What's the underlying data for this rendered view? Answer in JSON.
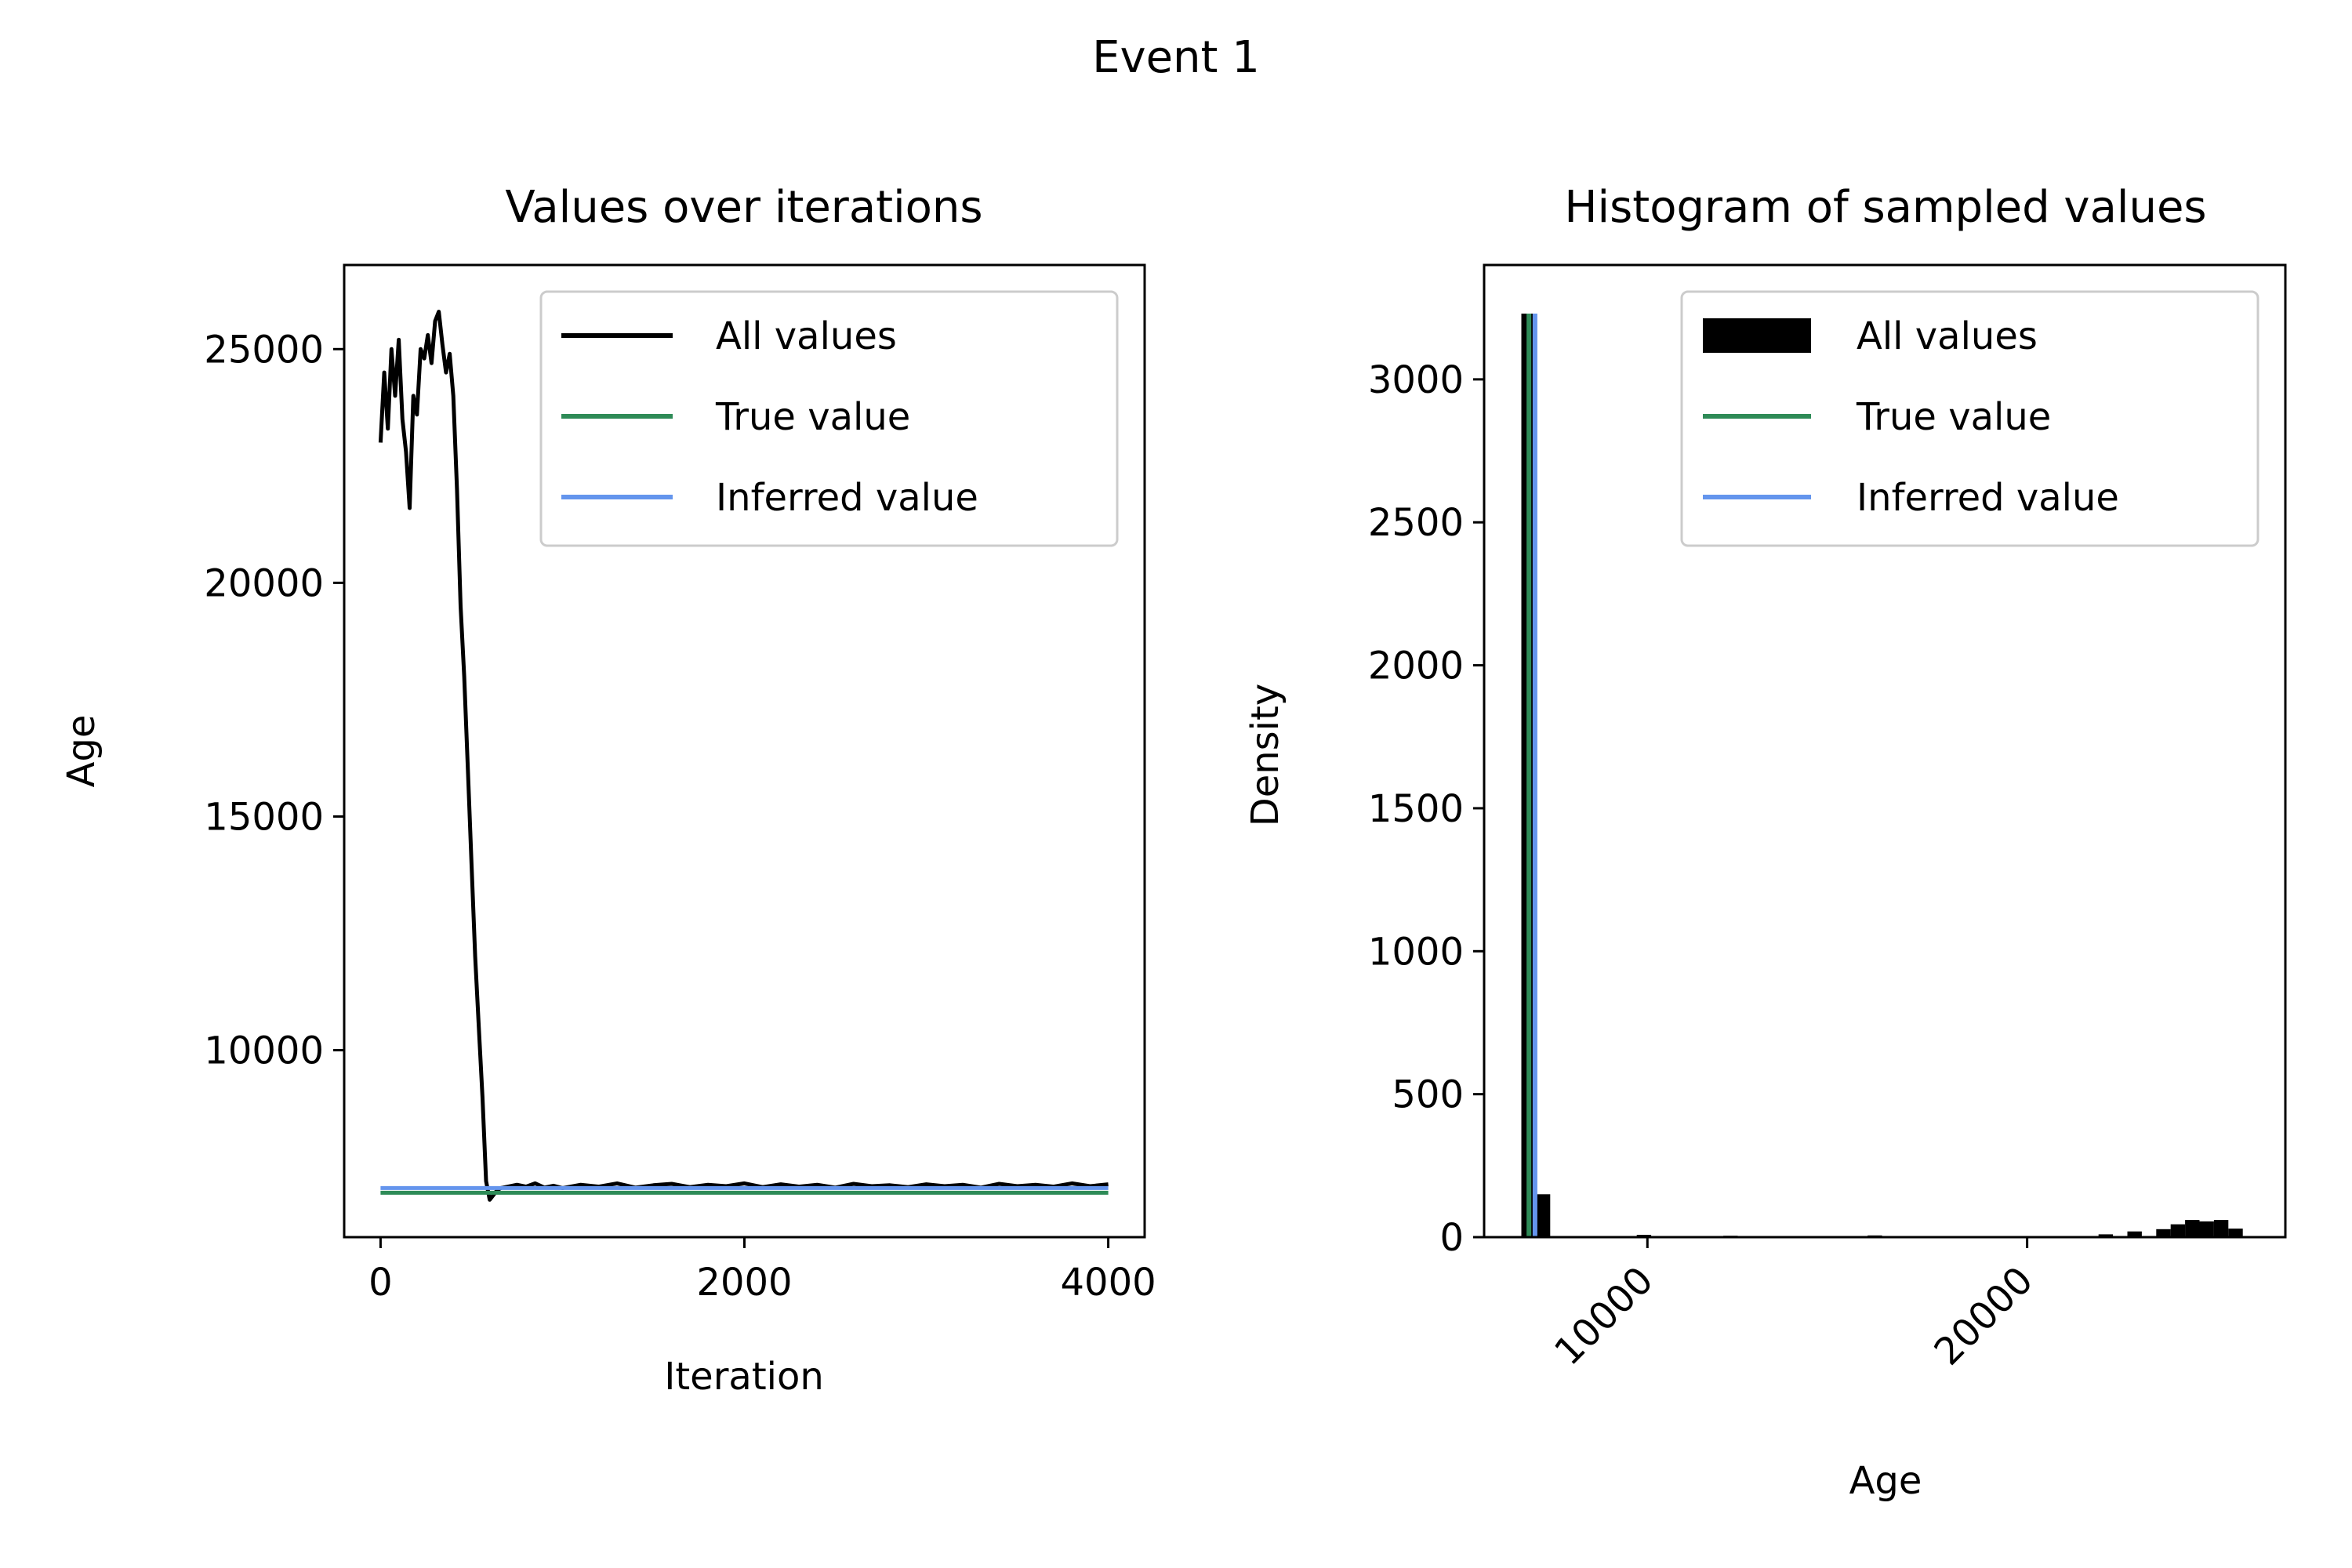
{
  "figure": {
    "suptitle": "Event 1"
  },
  "colors": {
    "all_values": "#000000",
    "true_value": "#2e8b57",
    "inferred_value": "#6495ed"
  },
  "chart_data": [
    {
      "type": "line",
      "title": "Values over iterations",
      "xlabel": "Iteration",
      "ylabel": "Age",
      "xlim": [
        -200,
        4200
      ],
      "ylim": [
        6000,
        26800
      ],
      "xticks": [
        0,
        2000,
        4000
      ],
      "yticks": [
        10000,
        15000,
        20000,
        25000
      ],
      "legend": {
        "position": "top-right",
        "entries": [
          "All values",
          "True value",
          "Inferred value"
        ]
      },
      "series": [
        {
          "name": "All values",
          "x": [
            0,
            20,
            40,
            60,
            80,
            100,
            120,
            140,
            160,
            180,
            200,
            220,
            240,
            260,
            280,
            300,
            320,
            340,
            360,
            380,
            400,
            420,
            440,
            460,
            480,
            500,
            520,
            540,
            560,
            580,
            600,
            620,
            640,
            660,
            700,
            750,
            800,
            850,
            900,
            950,
            1000,
            1100,
            1200,
            1300,
            1400,
            1500,
            1600,
            1700,
            1800,
            1900,
            2000,
            2100,
            2200,
            2300,
            2400,
            2500,
            2600,
            2700,
            2800,
            2900,
            3000,
            3100,
            3200,
            3300,
            3400,
            3500,
            3600,
            3700,
            3800,
            3900,
            4000
          ],
          "y": [
            23000,
            24500,
            23300,
            25000,
            24000,
            25200,
            23500,
            22800,
            21600,
            24000,
            23600,
            25000,
            24800,
            25300,
            24700,
            25600,
            25800,
            25100,
            24500,
            24900,
            24000,
            22000,
            19500,
            18000,
            16000,
            14000,
            12000,
            10500,
            9000,
            7200,
            6800,
            6900,
            7000,
            7050,
            7080,
            7120,
            7080,
            7150,
            7060,
            7100,
            7050,
            7120,
            7080,
            7150,
            7060,
            7110,
            7140,
            7070,
            7120,
            7090,
            7150,
            7070,
            7130,
            7080,
            7120,
            7060,
            7140,
            7090,
            7110,
            7070,
            7130,
            7090,
            7120,
            7060,
            7140,
            7090,
            7120,
            7080,
            7150,
            7090,
            7130
          ]
        },
        {
          "name": "True value",
          "x": [
            0,
            4000
          ],
          "y": [
            6950,
            6950
          ]
        },
        {
          "name": "Inferred value",
          "x": [
            0,
            4000
          ],
          "y": [
            7050,
            7050
          ]
        }
      ]
    },
    {
      "type": "bar",
      "title": "Histogram of sampled values",
      "xlabel": "Age",
      "ylabel": "Density",
      "xlim": [
        5700,
        26800
      ],
      "ylim": [
        0,
        3400
      ],
      "xticks": [
        10000,
        20000
      ],
      "yticks": [
        0,
        500,
        1000,
        1500,
        2000,
        2500,
        3000
      ],
      "bin_width": 380,
      "legend": {
        "position": "top-right",
        "entries": [
          "All values",
          "True value",
          "Inferred value"
        ]
      },
      "series": [
        {
          "name": "All values",
          "bin_starts": [
            6680,
            7060,
            7440,
            9720,
            10480,
            11620,
            12000,
            15800,
            18080,
            19220,
            21880,
            22640,
            23400,
            23780,
            24160,
            24540,
            24920,
            25300
          ],
          "values": [
            3230,
            150,
            3,
            8,
            4,
            3,
            5,
            6,
            3,
            3,
            10,
            20,
            28,
            45,
            60,
            55,
            60,
            30
          ]
        },
        {
          "name": "True value",
          "x": 6880,
          "ymax": 3230
        },
        {
          "name": "Inferred value",
          "x": 7040,
          "ymax": 3230
        }
      ]
    }
  ]
}
